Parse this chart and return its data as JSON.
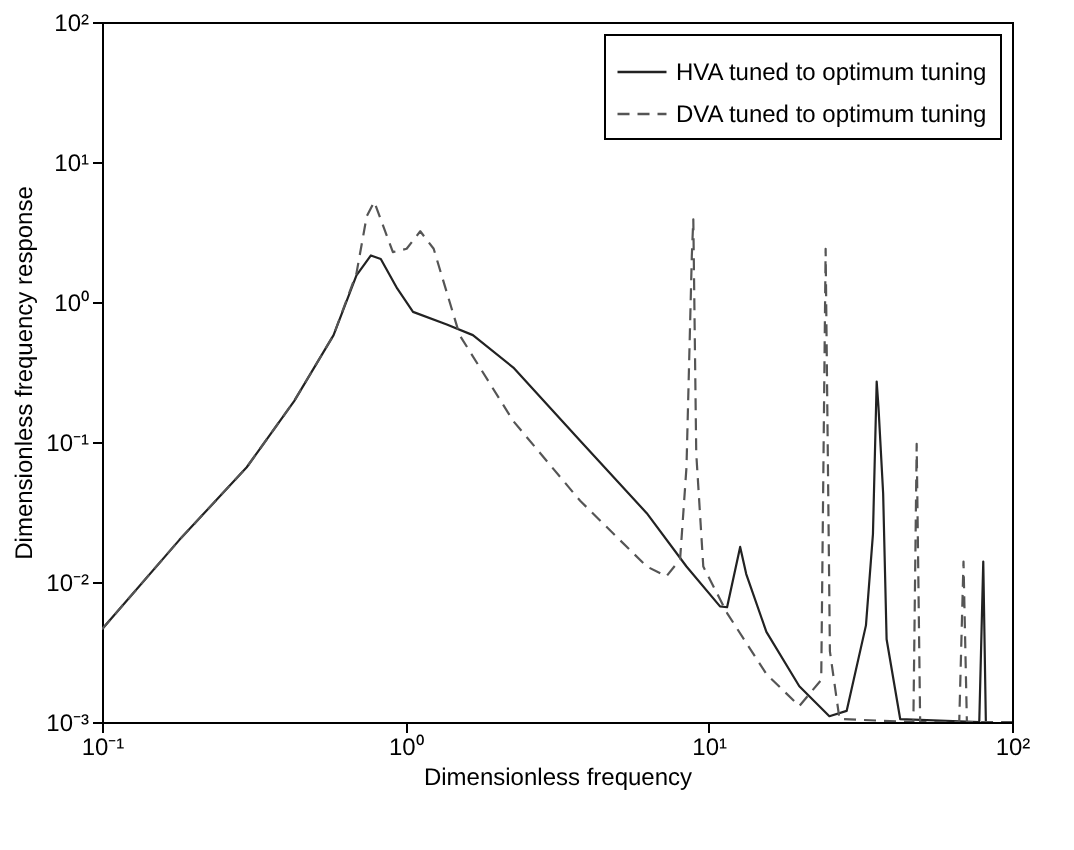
{
  "chart_data": {
    "type": "line",
    "xlabel": "Dimensionless frequency",
    "ylabel": "Dimensionless frequency response",
    "log": "xy",
    "grid": false,
    "legend": "top right",
    "xlim": [
      0.1,
      100
    ],
    "ylim": [
      0.001,
      100
    ],
    "xticks": [
      {
        "value": 0.1,
        "label": "10⁻¹"
      },
      {
        "value": 1,
        "label": "10⁰"
      },
      {
        "value": 10,
        "label": "10¹"
      },
      {
        "value": 100,
        "label": "10²"
      }
    ],
    "yticks": [
      {
        "value": 0.001,
        "label": "10⁻³"
      },
      {
        "value": 0.01,
        "label": "10⁻²"
      },
      {
        "value": 0.1,
        "label": "10⁻¹"
      },
      {
        "value": 1,
        "label": "10⁰"
      },
      {
        "value": 10,
        "label": "10¹"
      },
      {
        "value": 100,
        "label": "10²"
      }
    ],
    "series": [
      {
        "name": "HVA tuned to optimum tuning",
        "color": "#222222",
        "line_style": "solid",
        "x": [
          0.1,
          0.18,
          0.3,
          0.43,
          0.58,
          0.69,
          0.77,
          0.83,
          0.94,
          1.06,
          1.37,
          1.67,
          2.27,
          3.77,
          6.25,
          8.45,
          10.9,
          11.5,
          12.7,
          13.3,
          15.5,
          19.9,
          25,
          28.5,
          33,
          34.8,
          35.8,
          36.3,
          37.6,
          38.6,
          42.8,
          78,
          80.4,
          82
        ],
        "values": [
          0.0046,
          0.02,
          0.066,
          0.196,
          0.58,
          1.55,
          2.15,
          2.03,
          1.25,
          0.85,
          0.69,
          0.58,
          0.34,
          0.102,
          0.031,
          0.0129,
          0.0067,
          0.0066,
          0.0178,
          0.0114,
          0.0044,
          0.0018,
          0.0011,
          0.0012,
          0.0049,
          0.022,
          0.27,
          0.176,
          0.043,
          0.0039,
          0.00105,
          0.001,
          0.014,
          0.001
        ]
      },
      {
        "name": "DVA tuned to optimum tuning",
        "color": "#555555",
        "line_style": "dashed",
        "x": [
          0.1,
          0.18,
          0.3,
          0.43,
          0.58,
          0.69,
          0.746,
          0.79,
          0.91,
          1.01,
          1.12,
          1.24,
          1.51,
          2.27,
          3.77,
          6.25,
          7.26,
          8.05,
          8.45,
          8.8,
          8.9,
          9.1,
          9.6,
          11.5,
          15.5,
          19.9,
          23.5,
          24.3,
          25.1,
          27,
          47.3,
          48.5,
          49.8,
          67,
          69.2,
          71,
          100
        ],
        "values": [
          0.0046,
          0.02,
          0.066,
          0.196,
          0.58,
          1.6,
          4.1,
          5.2,
          2.27,
          2.4,
          3.2,
          2.4,
          0.58,
          0.141,
          0.038,
          0.0129,
          0.011,
          0.0145,
          0.066,
          2.14,
          3.9,
          0.083,
          0.0129,
          0.006,
          0.0022,
          0.0013,
          0.002,
          2.4,
          0.0032,
          0.00105,
          0.001,
          0.097,
          0.001,
          0.001,
          0.014,
          0.001,
          0.001
        ]
      }
    ]
  }
}
